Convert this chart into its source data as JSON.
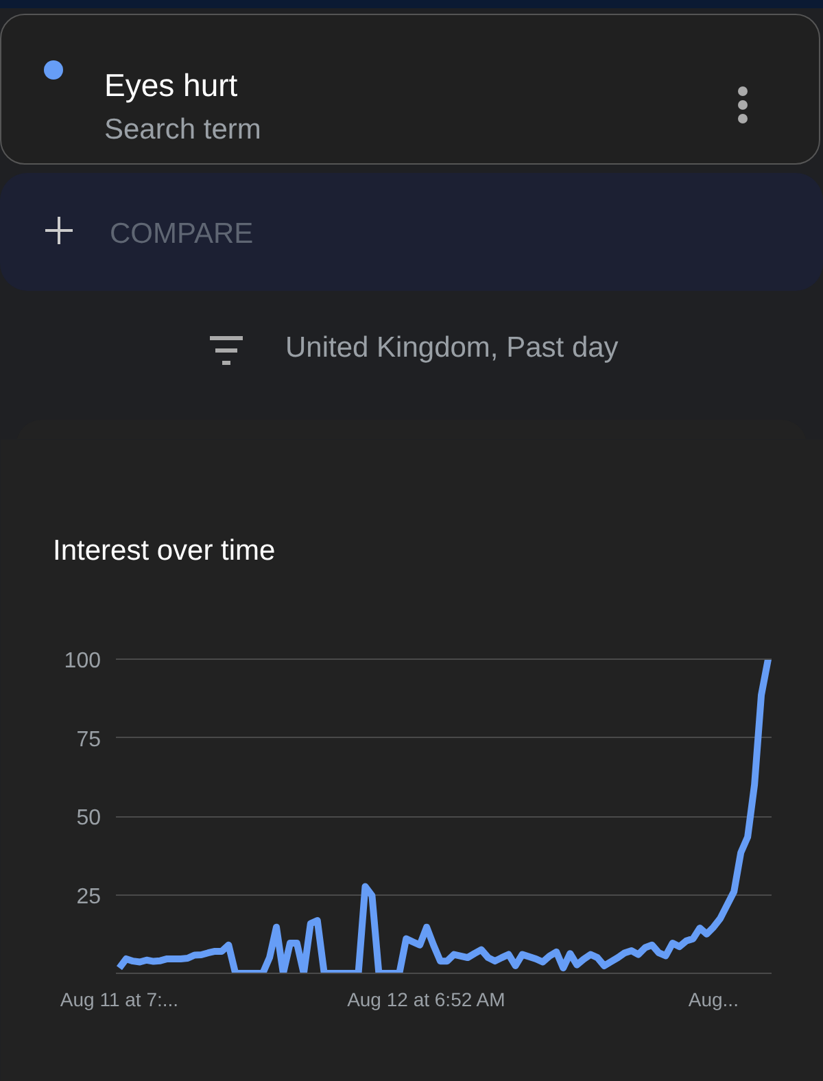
{
  "chart_data": {
    "type": "line",
    "title": "Interest over time",
    "annotations": [
      "Search term",
      "COMPARE",
      "United Kingdom, Past day"
    ],
    "legend": "top",
    "categories": [
      "Aug 11 at 7:...",
      null,
      null,
      null,
      null,
      null,
      null,
      null,
      null,
      null,
      null,
      null,
      null,
      null,
      null,
      null,
      null,
      null,
      null,
      null,
      null,
      null,
      null,
      null,
      null,
      null,
      null,
      null,
      null,
      null,
      null,
      null,
      null,
      null,
      null,
      null,
      null,
      null,
      null,
      null,
      null,
      null,
      null,
      null,
      null,
      "Aug 12 at 6:52 AM",
      null,
      null,
      null,
      null,
      null,
      null,
      null,
      null,
      null,
      null,
      null,
      null,
      null,
      null,
      null,
      null,
      null,
      null,
      null,
      null,
      null,
      null,
      null,
      null,
      null,
      null,
      null,
      null,
      null,
      null,
      null,
      null,
      null,
      null,
      null,
      null,
      null,
      null,
      null,
      null,
      null,
      "Aug...",
      null,
      null,
      null,
      null,
      null,
      null,
      null,
      null
    ],
    "series": [
      {
        "name": "Eyes hurt",
        "color": "#669df6",
        "values": [
          1.7,
          4.6,
          3.9,
          3.6,
          4.2,
          3.8,
          4.0,
          4.6,
          4.6,
          4.6,
          4.8,
          5.8,
          5.9,
          6.5,
          7,
          7,
          9,
          0,
          0,
          0,
          0,
          0,
          5,
          14.7,
          0,
          9.6,
          9.6,
          0,
          15.8,
          16.8,
          0,
          0,
          0,
          0,
          0,
          0,
          27.6,
          24.7,
          0,
          0,
          0,
          0,
          11,
          10,
          9,
          14.7,
          9,
          3.9,
          3.9,
          6,
          5.5,
          5,
          6.3,
          7.5,
          5,
          3.9,
          5,
          6,
          2.4,
          6,
          5.3,
          4.6,
          3.6,
          5.5,
          6.8,
          1.7,
          6.3,
          2.7,
          4.5,
          6,
          5,
          2.4,
          3.7,
          5,
          6.5,
          7.2,
          6,
          8.2,
          9,
          6.5,
          5.6,
          9.6,
          8.5,
          10.3,
          11,
          14.4,
          12.5,
          14.7,
          17.5,
          21.8,
          26,
          38.4,
          43.4,
          60,
          88.6,
          100
        ]
      }
    ],
    "ylim": [
      0,
      100
    ],
    "yticks": [
      {
        "value": 0,
        "label": null
      },
      25,
      50,
      75,
      100
    ],
    "grid": "y",
    "marker": "none",
    "line_style": "solid"
  }
}
